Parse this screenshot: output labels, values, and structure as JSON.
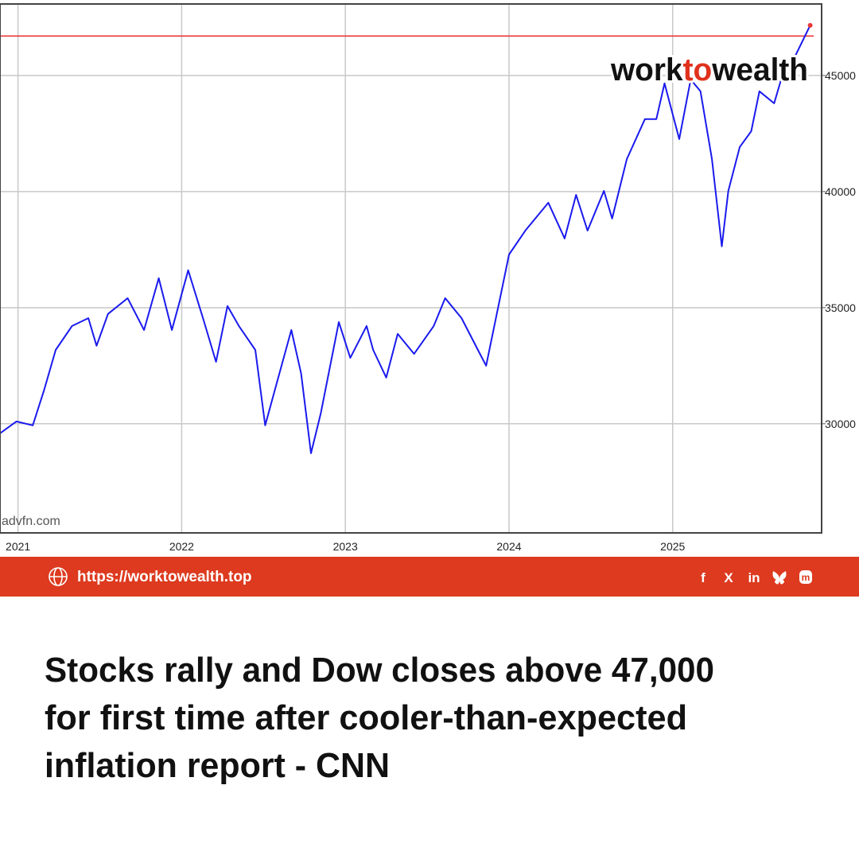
{
  "chart_data": {
    "type": "line",
    "x": [
      2020.89,
      2020.99,
      2021.09,
      2021.16,
      2021.23,
      2021.33,
      2021.43,
      2021.48,
      2021.55,
      2021.67,
      2021.77,
      2021.86,
      2021.94,
      2022.04,
      2022.13,
      2022.21,
      2022.28,
      2022.35,
      2022.45,
      2022.51,
      2022.57,
      2022.67,
      2022.73,
      2022.79,
      2022.85,
      2022.96,
      2023.03,
      2023.13,
      2023.17,
      2023.25,
      2023.32,
      2023.42,
      2023.54,
      2023.61,
      2023.71,
      2023.81,
      2023.86,
      2023.93,
      2024.0,
      2024.1,
      2024.24,
      2024.34,
      2024.41,
      2024.48,
      2024.58,
      2024.63,
      2024.72,
      2024.83,
      2024.9,
      2024.95,
      2025.04,
      2025.11,
      2025.17,
      2025.24,
      2025.3,
      2025.34,
      2025.41,
      2025.48,
      2025.53,
      2025.62,
      2025.67,
      2025.75,
      2025.84
    ],
    "series": [
      {
        "color": "#1a1aee",
        "values": [
          29590,
          30100,
          29930,
          31470,
          33180,
          34210,
          34550,
          33360,
          34730,
          35410,
          34040,
          36270,
          34040,
          36610,
          34550,
          32670,
          35070,
          34210,
          33180,
          29930,
          31470,
          34040,
          32160,
          28730,
          30450,
          34380,
          32840,
          34210,
          33180,
          31990,
          33870,
          33010,
          34210,
          35410,
          34550,
          33180,
          32500,
          34900,
          37290,
          38320,
          39520,
          37980,
          39860,
          38320,
          40030,
          38840,
          41400,
          43120,
          43120,
          44660,
          42260,
          44830,
          44320,
          41400,
          37640,
          40030,
          41920,
          42600,
          44320,
          43800,
          45000,
          45860,
          47160
        ]
      }
    ],
    "xlim": [
      2020.89,
      2025.91
    ],
    "ylim": [
      25300,
      48080
    ],
    "xticks": [
      2021,
      2022,
      2023,
      2024,
      2025
    ],
    "yticks": [
      30000,
      35000,
      40000,
      45000
    ],
    "grid": true,
    "reference_line": 46700,
    "reference_color": "#e8393a",
    "watermark": "advfn.com"
  },
  "logo": [
    "work",
    "to",
    "wealth"
  ],
  "banner": {
    "url": "https://worktowealth.top",
    "social": [
      "f",
      "X",
      "in"
    ]
  },
  "headline": [
    "Stocks rally and Dow closes above 47,000",
    "for first time after cooler-than-expected",
    "inflation report - CNN"
  ]
}
